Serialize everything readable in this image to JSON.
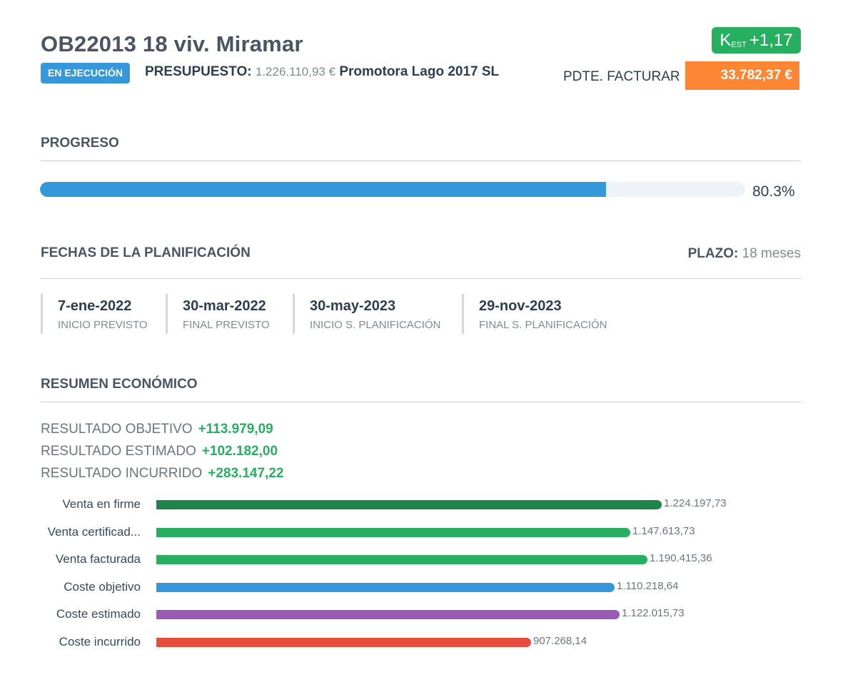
{
  "header": {
    "title": "OB22013 18 viv. Miramar",
    "status": "EN EJECUCIÓN",
    "budget_label": "PRESUPUESTO:",
    "budget_value": "1.226.110,93 €",
    "client": "Promotora Lago 2017 SL",
    "kest_main": "K",
    "kest_sub": "EST",
    "kest_value": "+1,17",
    "pending_label": "PDTE. FACTURAR",
    "pending_value": "33.782,37 €",
    "colors": {
      "status": "#3498db",
      "kest": "#27ae60",
      "pending": "#fd8634"
    }
  },
  "progress": {
    "title": "PROGRESO",
    "percent": 80.3,
    "label": "80.3%"
  },
  "planning": {
    "title": "FECHAS DE LA PLANIFICACIÓN",
    "term_label": "PLAZO:",
    "term_value": "18 meses",
    "dates": [
      {
        "date": "7-ene-2022",
        "label": "INICIO PREVISTO"
      },
      {
        "date": "30-mar-2022",
        "label": "FINAL PREVISTO"
      },
      {
        "date": "30-may-2023",
        "label": "INICIO S. PLANIFICACIÓN"
      },
      {
        "date": "29-nov-2023",
        "label": "FINAL S. PLANIFICACIÓN"
      }
    ]
  },
  "economic": {
    "title": "RESUMEN ECONÓMICO",
    "results": [
      {
        "label": "RESULTADO OBJETIVO",
        "value": "+113.979,09"
      },
      {
        "label": "RESULTADO ESTIMADO",
        "value": "+102.182,00"
      },
      {
        "label": "RESULTADO INCURRIDO",
        "value": "+283.147,22"
      }
    ]
  },
  "chart_data": {
    "type": "bar",
    "orientation": "horizontal",
    "categories": [
      "Venta en firme",
      "Venta certificad...",
      "Venta facturada",
      "Coste objetivo",
      "Coste estimado",
      "Coste incurrido"
    ],
    "values": [
      1224197.73,
      1147613.73,
      1190415.36,
      1110218.64,
      1122015.73,
      907268.14
    ],
    "value_labels": [
      "1.224.197,73",
      "1.147.613,73",
      "1.190.415,36",
      "1.110.218,64",
      "1.122.015,73",
      "907.268,14"
    ],
    "colors": [
      "#1e8449",
      "#27ae60",
      "#27ae60",
      "#3498db",
      "#9b59b6",
      "#e74c3c"
    ],
    "xlim": [
      0,
      1224197.73
    ]
  }
}
